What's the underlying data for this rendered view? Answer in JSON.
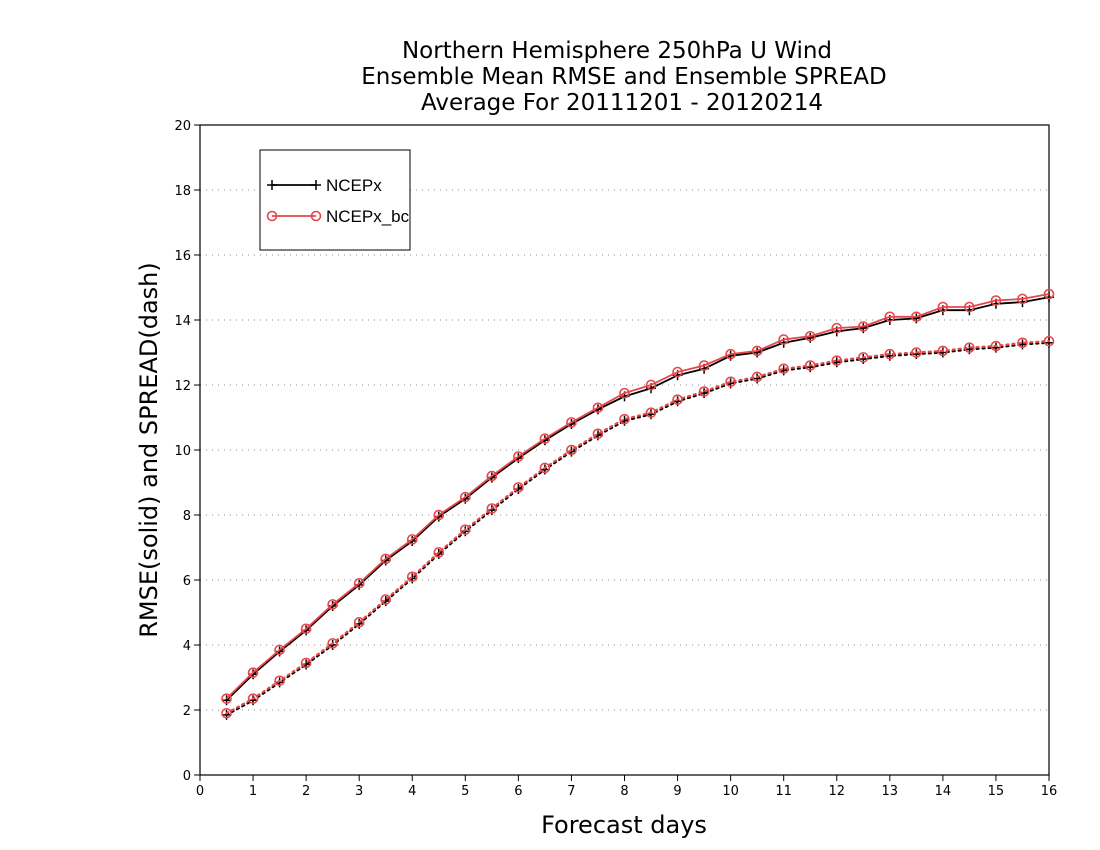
{
  "chart_data": {
    "type": "line",
    "title": [
      "Northern Hemisphere 250hPa U Wind",
      "Ensemble Mean RMSE and Ensemble SPREAD",
      "Average For 20111201 - 20120214"
    ],
    "xlabel": "Forecast days",
    "ylabel": "RMSE(solid) and SPREAD(dash)",
    "xlim": [
      0,
      16
    ],
    "ylim": [
      0,
      20
    ],
    "xticks": [
      0,
      1,
      2,
      3,
      4,
      5,
      6,
      7,
      8,
      9,
      10,
      11,
      12,
      13,
      14,
      15,
      16
    ],
    "yticks": [
      0,
      2,
      4,
      6,
      8,
      10,
      12,
      14,
      16,
      18,
      20
    ],
    "grid": "horizontal dotted",
    "legend_position": "top-left",
    "x": [
      0.5,
      1,
      1.5,
      2,
      2.5,
      3,
      3.5,
      4,
      4.5,
      5,
      5.5,
      6,
      6.5,
      7,
      7.5,
      8,
      8.5,
      9,
      9.5,
      10,
      10.5,
      11,
      11.5,
      12,
      12.5,
      13,
      13.5,
      14,
      14.5,
      15,
      15.5,
      16
    ],
    "series": [
      {
        "name": "NCEPx",
        "metric": "RMSE",
        "style": "solid",
        "color": "#000000",
        "marker": "plus",
        "values": [
          2.3,
          3.1,
          3.8,
          4.45,
          5.2,
          5.85,
          6.6,
          7.2,
          7.95,
          8.5,
          9.15,
          9.75,
          10.3,
          10.8,
          11.25,
          11.65,
          11.9,
          12.3,
          12.5,
          12.9,
          13.0,
          13.3,
          13.45,
          13.65,
          13.75,
          14.0,
          14.05,
          14.3,
          14.3,
          14.5,
          14.55,
          14.7
        ]
      },
      {
        "name": "NCEPx_bc",
        "metric": "RMSE",
        "style": "solid",
        "color": "#e8474a",
        "marker": "circle",
        "values": [
          2.35,
          3.15,
          3.85,
          4.5,
          5.25,
          5.9,
          6.65,
          7.25,
          8.0,
          8.55,
          9.2,
          9.8,
          10.35,
          10.85,
          11.3,
          11.75,
          12.0,
          12.4,
          12.6,
          12.95,
          13.05,
          13.4,
          13.5,
          13.75,
          13.8,
          14.1,
          14.1,
          14.4,
          14.4,
          14.6,
          14.65,
          14.8
        ]
      },
      {
        "name": "NCEPx",
        "metric": "SPREAD",
        "style": "dotted",
        "color": "#000000",
        "marker": "plus",
        "values": [
          1.85,
          2.3,
          2.85,
          3.4,
          4.0,
          4.65,
          5.35,
          6.05,
          6.8,
          7.5,
          8.15,
          8.8,
          9.4,
          9.95,
          10.45,
          10.9,
          11.1,
          11.5,
          11.75,
          12.05,
          12.2,
          12.45,
          12.55,
          12.7,
          12.8,
          12.9,
          12.95,
          13.0,
          13.1,
          13.15,
          13.25,
          13.3
        ]
      },
      {
        "name": "NCEPx_bc",
        "metric": "SPREAD",
        "style": "dotted",
        "color": "#e8474a",
        "marker": "circle",
        "values": [
          1.9,
          2.35,
          2.9,
          3.45,
          4.05,
          4.7,
          5.4,
          6.1,
          6.85,
          7.55,
          8.2,
          8.85,
          9.45,
          10.0,
          10.5,
          10.95,
          11.15,
          11.55,
          11.8,
          12.1,
          12.25,
          12.5,
          12.6,
          12.75,
          12.85,
          12.95,
          13.0,
          13.05,
          13.15,
          13.2,
          13.3,
          13.35
        ]
      }
    ],
    "legend": [
      {
        "label": "NCEPx",
        "color": "#000000",
        "marker": "plus"
      },
      {
        "label": "NCEPx_bc",
        "color": "#e8474a",
        "marker": "circle"
      }
    ]
  }
}
